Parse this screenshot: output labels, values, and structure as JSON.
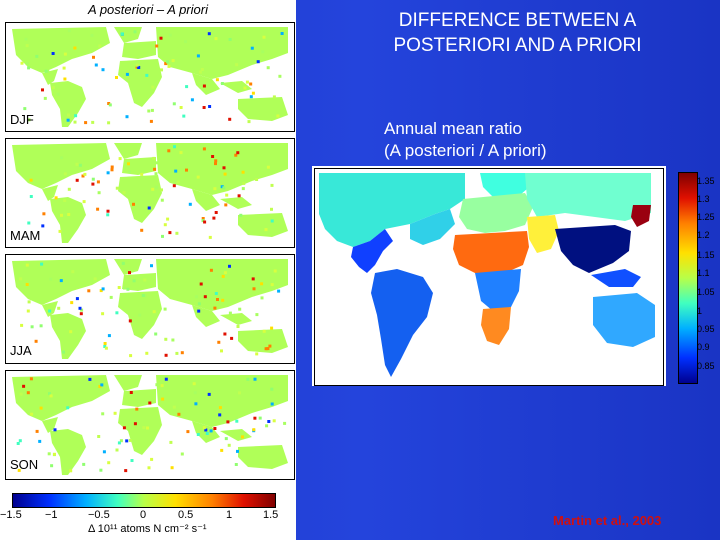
{
  "left_panel": {
    "title": "A posteriori – A priori",
    "seasons": [
      "DJF",
      "MAM",
      "JJA",
      "SON"
    ],
    "colorbar": {
      "ticks": [
        "−1.5",
        "−1",
        "−0.5",
        "0",
        "0.5",
        "1",
        "1.5"
      ],
      "label": "Δ 10¹¹ atoms N cm⁻² s⁻¹"
    }
  },
  "right_panel": {
    "title_line1": "DIFFERENCE BETWEEN A",
    "title_line2": "POSTERIORI AND A PRIORI",
    "subtitle_line1": "Annual mean ratio",
    "subtitle_line2": "(A posteriori / A priori)",
    "colorbar_ticks": [
      "1.35",
      "1.3",
      "1.25",
      "1.2",
      "1.15",
      "1.1",
      "1.05",
      "1",
      "0.95",
      "0.9",
      "0.85"
    ]
  },
  "citation": "Martin et al., 2003",
  "colors": {
    "background": "#1f3bd0",
    "title_text": "#ffffff",
    "citation": "#d01010"
  }
}
